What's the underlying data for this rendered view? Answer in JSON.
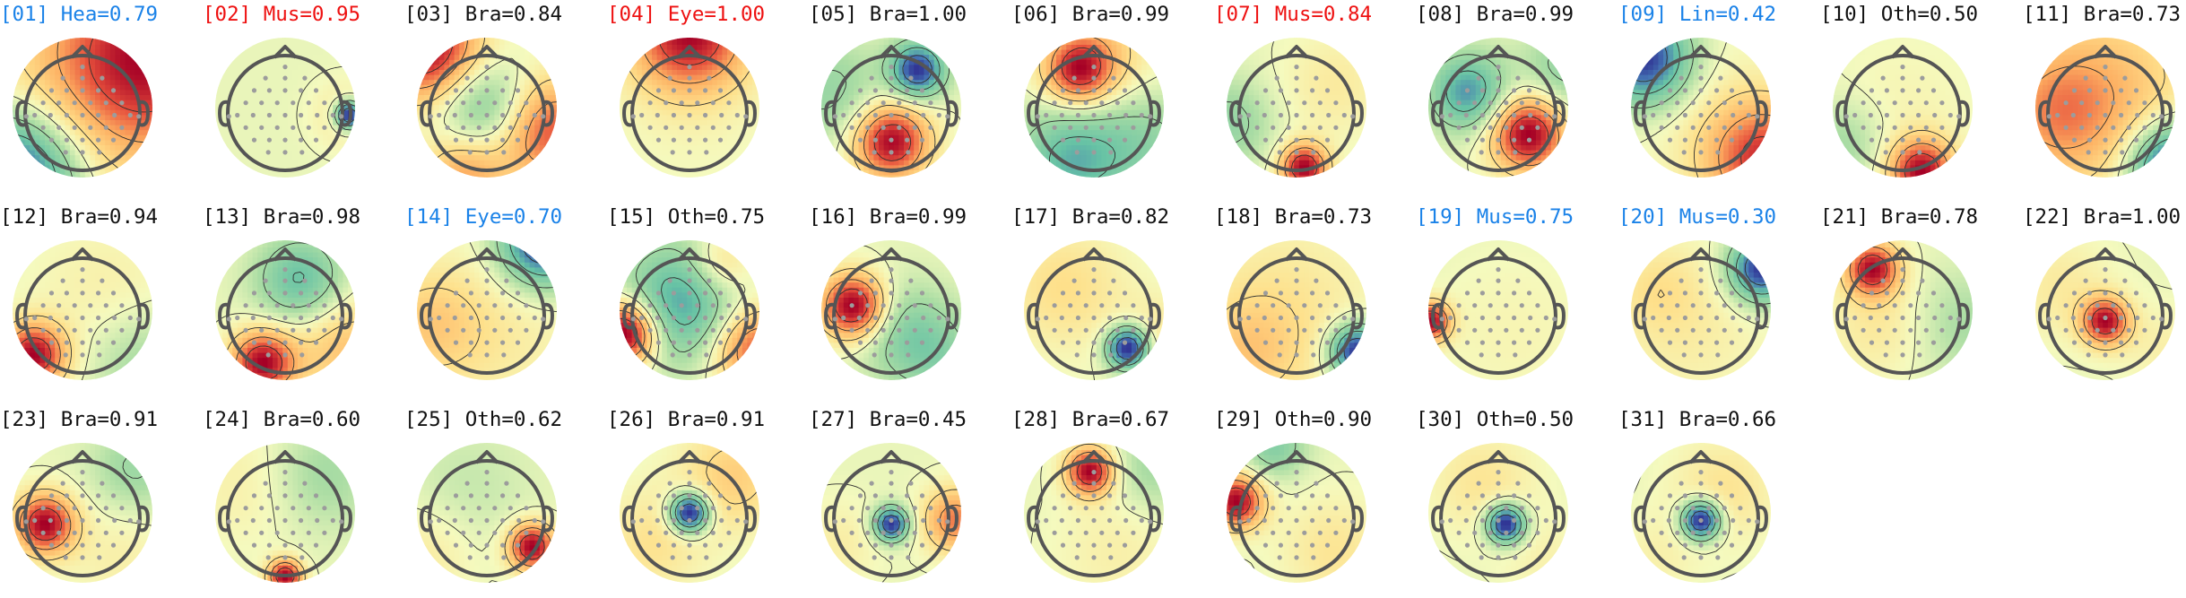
{
  "colors": {
    "label_default": "#111111",
    "label_red": "#ee1111",
    "label_blue": "#1a82e8",
    "sensor": "#9c9c9c",
    "head_outline": "#555555",
    "contour": "#2f2f2f"
  },
  "components": [
    {
      "label": "[01] Hea=0.79",
      "label_color": "blue"
    },
    {
      "label": "[02] Mus=0.95",
      "label_color": "red"
    },
    {
      "label": "[03] Bra=0.84",
      "label_color": "default"
    },
    {
      "label": "[04] Eye=1.00",
      "label_color": "red"
    },
    {
      "label": "[05] Bra=1.00",
      "label_color": "default"
    },
    {
      "label": "[06] Bra=0.99",
      "label_color": "default"
    },
    {
      "label": "[07] Mus=0.84",
      "label_color": "red"
    },
    {
      "label": "[08] Bra=0.99",
      "label_color": "default"
    },
    {
      "label": "[09] Lin=0.42",
      "label_color": "blue"
    },
    {
      "label": "[10] Oth=0.50",
      "label_color": "default"
    },
    {
      "label": "[11] Bra=0.73",
      "label_color": "default"
    },
    {
      "label": "[12] Bra=0.94",
      "label_color": "default"
    },
    {
      "label": "[13] Bra=0.98",
      "label_color": "default"
    },
    {
      "label": "[14] Eye=0.70",
      "label_color": "blue"
    },
    {
      "label": "[15] Oth=0.75",
      "label_color": "default"
    },
    {
      "label": "[16] Bra=0.99",
      "label_color": "default"
    },
    {
      "label": "[17] Bra=0.82",
      "label_color": "default"
    },
    {
      "label": "[18] Bra=0.73",
      "label_color": "default"
    },
    {
      "label": "[19] Mus=0.75",
      "label_color": "blue"
    },
    {
      "label": "[20] Mus=0.30",
      "label_color": "blue"
    },
    {
      "label": "[21] Bra=0.78",
      "label_color": "default"
    },
    {
      "label": "[22] Bra=1.00",
      "label_color": "default"
    },
    {
      "label": "[23] Bra=0.91",
      "label_color": "default"
    },
    {
      "label": "[24] Bra=0.60",
      "label_color": "default"
    },
    {
      "label": "[25] Oth=0.62",
      "label_color": "default"
    },
    {
      "label": "[26] Bra=0.91",
      "label_color": "default"
    },
    {
      "label": "[27] Bra=0.45",
      "label_color": "default"
    },
    {
      "label": "[28] Bra=0.67",
      "label_color": "default"
    },
    {
      "label": "[29] Oth=0.90",
      "label_color": "default"
    },
    {
      "label": "[30] Oth=0.50",
      "label_color": "default"
    },
    {
      "label": "[31] Bra=0.66",
      "label_color": "default"
    }
  ]
}
